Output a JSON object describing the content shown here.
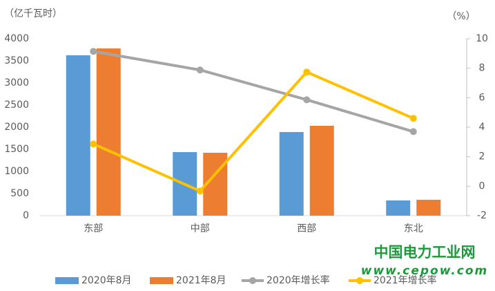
{
  "chart_data": {
    "type": "bar",
    "y_label": "（亿千瓦时）",
    "y2_label": "（%）",
    "categories": [
      "东部",
      "中部",
      "西部",
      "东北"
    ],
    "series": [
      {
        "name": "2020年8月",
        "color": "#5b9bd5",
        "values": [
          3625,
          1437,
          1890,
          344
        ]
      },
      {
        "name": "2021年8月",
        "color": "#ed7d31",
        "values": [
          3780,
          1422,
          2031,
          359
        ]
      },
      {
        "name": "2020年增长率",
        "color": "#a5a5a5",
        "type": "line",
        "axis": "y2",
        "values": [
          9.14,
          7.88,
          5.86,
          3.7
        ]
      },
      {
        "name": "2021年增长率",
        "color": "#ffc000",
        "type": "line",
        "axis": "y2",
        "values": [
          2.86,
          -0.33,
          7.74,
          4.6
        ]
      }
    ],
    "ylim": [
      0,
      4000
    ],
    "yticks": [
      0,
      500,
      1000,
      1500,
      2000,
      2500,
      3000,
      3500,
      4000
    ],
    "y2lim": [
      -2,
      10
    ],
    "y2ticks": [
      -2,
      0,
      2,
      4,
      6,
      8,
      10
    ],
    "grid": false,
    "legend": "bottom"
  },
  "watermark": {
    "name": "中国电力工业网",
    "url": "www.cepow.com"
  }
}
